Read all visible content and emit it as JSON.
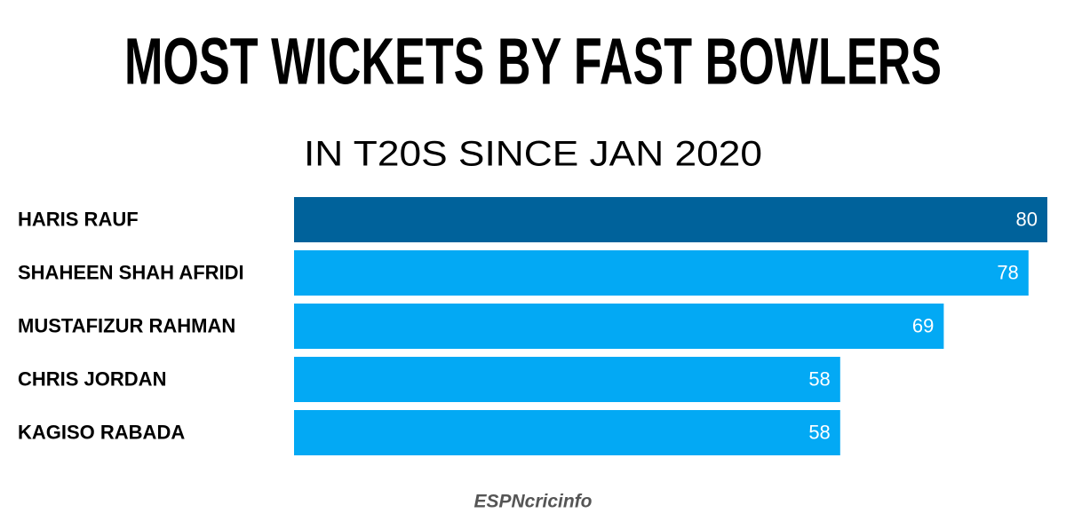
{
  "chart_data": {
    "type": "hbar",
    "title": "MOST WICKETS BY FAST BOWLERS",
    "subtitle": "IN T20S SINCE JAN 2020",
    "categories": [
      "HARIS RAUF",
      "SHAHEEN SHAH AFRIDI",
      "MUSTAFIZUR RAHMAN",
      "CHRIS JORDAN",
      "KAGISO RABADA"
    ],
    "values": [
      80,
      78,
      69,
      58,
      58
    ],
    "colors": [
      "#00629b",
      "#03a9f4",
      "#03a9f4",
      "#03a9f4",
      "#03a9f4"
    ],
    "source": "ESPNcricinfo"
  }
}
